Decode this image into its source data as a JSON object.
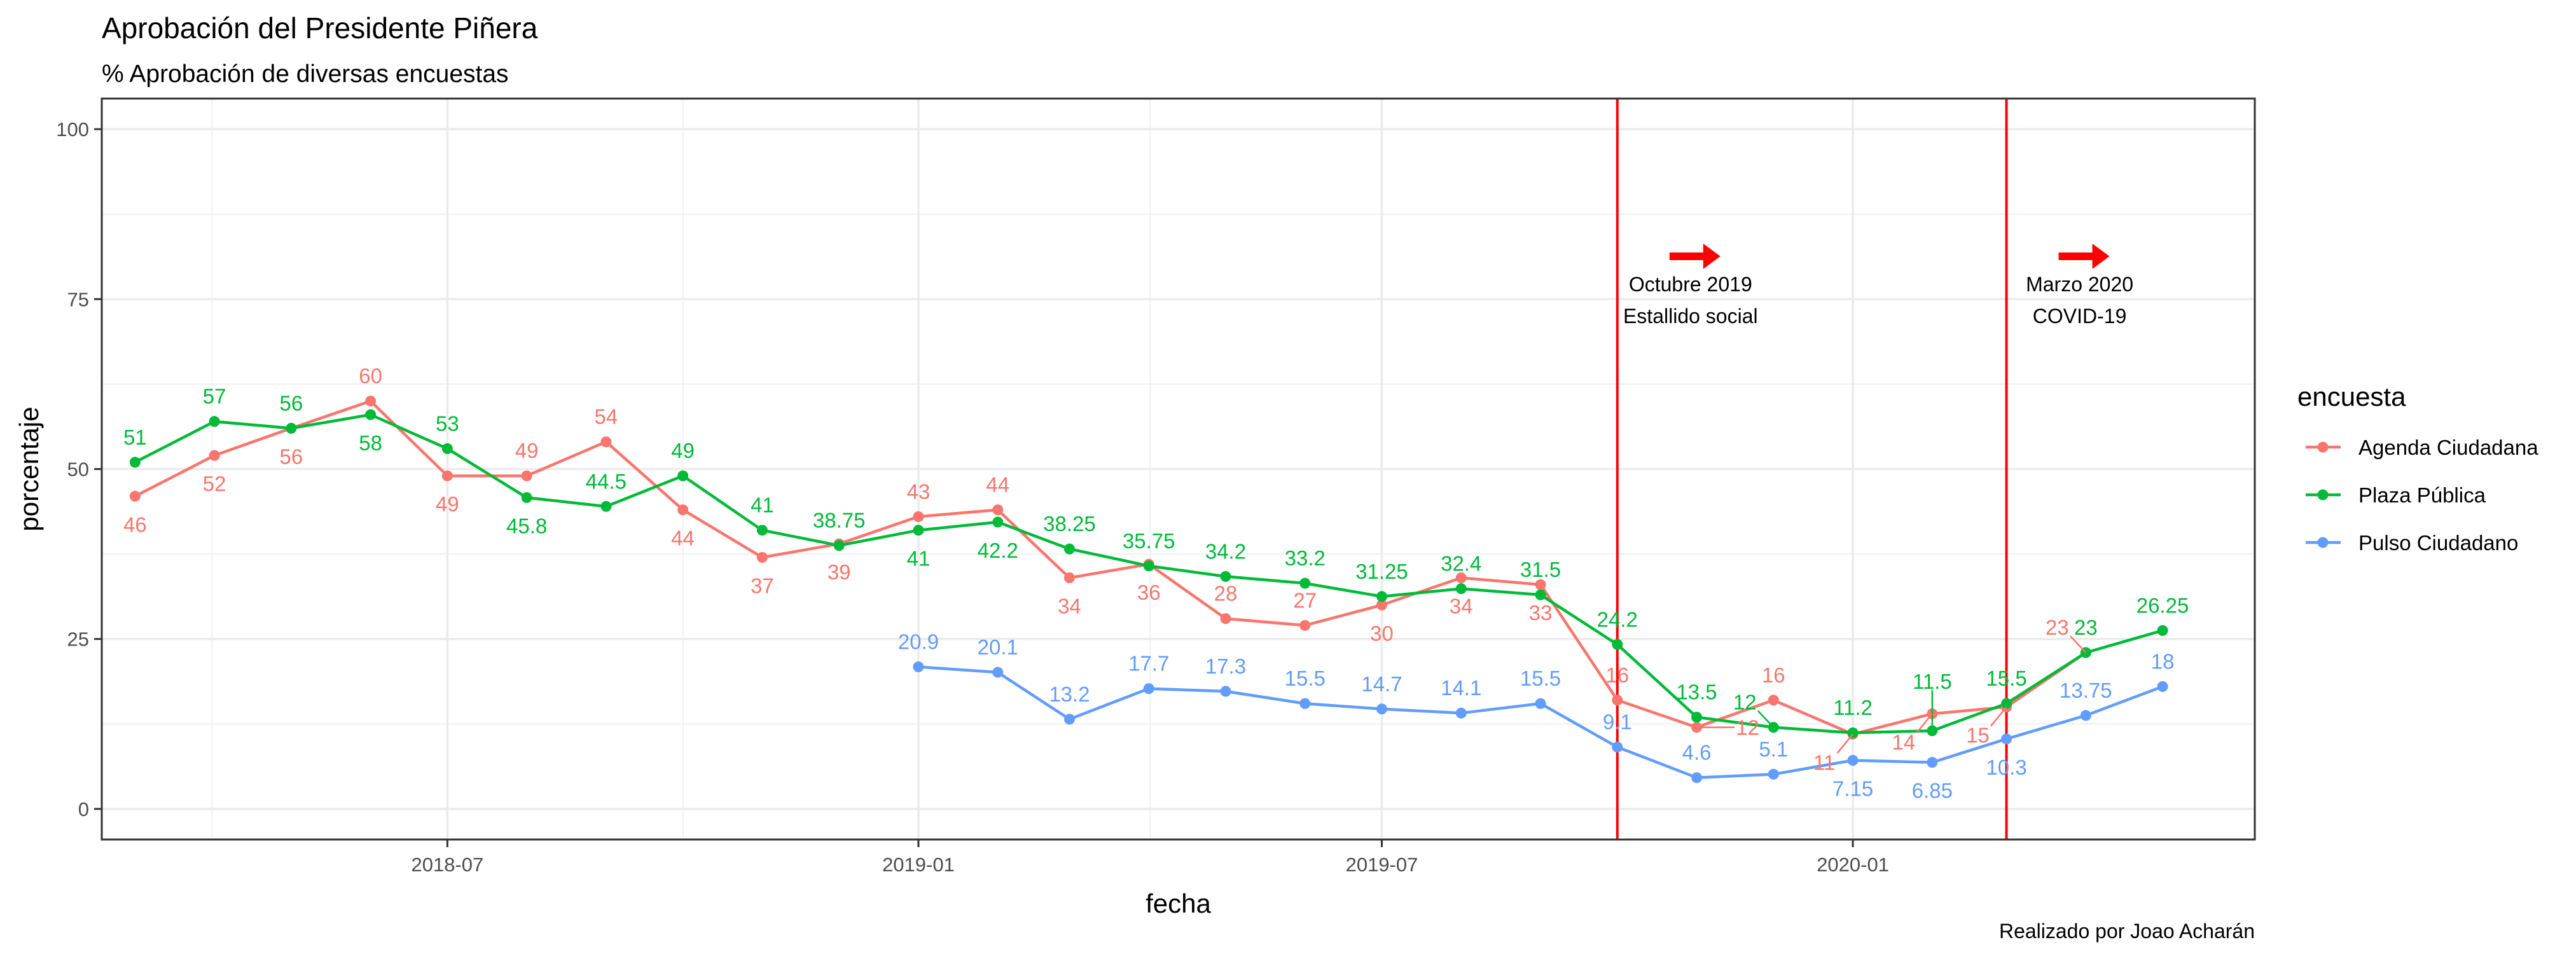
{
  "chart_data": {
    "type": "line",
    "title": "Aprobación del Presidente Piñera",
    "subtitle": "% Aprobación de diversas encuestas",
    "xlabel": "fecha",
    "ylabel": "porcentaje",
    "caption": "Realizado por Joao Acharán",
    "ylim": [
      0,
      100
    ],
    "xlim": [
      "2018-02-16",
      "2020-06-06"
    ],
    "x_ticks": [
      {
        "date": "2018-07-01",
        "label": "2018-07"
      },
      {
        "date": "2019-01-01",
        "label": "2019-01"
      },
      {
        "date": "2019-07-01",
        "label": "2019-07"
      },
      {
        "date": "2020-01-01",
        "label": "2020-01"
      }
    ],
    "y_ticks": [
      0,
      25,
      50,
      75,
      100
    ],
    "grid": true,
    "legend": {
      "title": "encuesta",
      "position": "right"
    },
    "series": [
      {
        "name": "Agenda Ciudadana",
        "color": "#F8766D",
        "points": [
          {
            "x": "2018-03-01",
            "y": 46,
            "label": "46"
          },
          {
            "x": "2018-04-01",
            "y": 52,
            "label": "52"
          },
          {
            "x": "2018-05-01",
            "y": 56,
            "label": "56"
          },
          {
            "x": "2018-06-01",
            "y": 60,
            "label": "60"
          },
          {
            "x": "2018-07-01",
            "y": 49,
            "label": "49"
          },
          {
            "x": "2018-08-01",
            "y": 49,
            "label": "49"
          },
          {
            "x": "2018-09-01",
            "y": 54,
            "label": "54"
          },
          {
            "x": "2018-10-01",
            "y": 44,
            "label": "44"
          },
          {
            "x": "2018-11-01",
            "y": 37,
            "label": "37"
          },
          {
            "x": "2018-12-01",
            "y": 39,
            "label": "39"
          },
          {
            "x": "2019-01-01",
            "y": 43,
            "label": "43"
          },
          {
            "x": "2019-02-01",
            "y": 44,
            "label": "44"
          },
          {
            "x": "2019-03-01",
            "y": 34,
            "label": "34"
          },
          {
            "x": "2019-04-01",
            "y": 36,
            "label": "36"
          },
          {
            "x": "2019-05-01",
            "y": 28,
            "label": "28"
          },
          {
            "x": "2019-06-01",
            "y": 27,
            "label": "27"
          },
          {
            "x": "2019-07-01",
            "y": 30,
            "label": "30"
          },
          {
            "x": "2019-08-01",
            "y": 34,
            "label": "34"
          },
          {
            "x": "2019-09-01",
            "y": 33,
            "label": "33"
          },
          {
            "x": "2019-10-01",
            "y": 16,
            "label": "16"
          },
          {
            "x": "2019-11-01",
            "y": 12,
            "label": "12"
          },
          {
            "x": "2019-12-01",
            "y": 16,
            "label": "16"
          },
          {
            "x": "2020-01-01",
            "y": 11,
            "label": "11"
          },
          {
            "x": "2020-02-01",
            "y": 14,
            "label": "14"
          },
          {
            "x": "2020-03-01",
            "y": 15,
            "label": "15"
          },
          {
            "x": "2020-04-01",
            "y": 23,
            "label": "23"
          }
        ]
      },
      {
        "name": "Plaza Pública",
        "color": "#00BA38",
        "points": [
          {
            "x": "2018-03-01",
            "y": 51,
            "label": "51"
          },
          {
            "x": "2018-04-01",
            "y": 57,
            "label": "57"
          },
          {
            "x": "2018-05-01",
            "y": 56,
            "label": "56"
          },
          {
            "x": "2018-06-01",
            "y": 58,
            "label": "58"
          },
          {
            "x": "2018-07-01",
            "y": 53,
            "label": "53"
          },
          {
            "x": "2018-08-01",
            "y": 45.8,
            "label": "45.8"
          },
          {
            "x": "2018-09-01",
            "y": 44.5,
            "label": "44.5"
          },
          {
            "x": "2018-10-01",
            "y": 49,
            "label": "49"
          },
          {
            "x": "2018-11-01",
            "y": 41,
            "label": "41"
          },
          {
            "x": "2018-12-01",
            "y": 38.75,
            "label": "38.75"
          },
          {
            "x": "2019-01-01",
            "y": 41,
            "label": "41"
          },
          {
            "x": "2019-02-01",
            "y": 42.2,
            "label": "42.2"
          },
          {
            "x": "2019-03-01",
            "y": 38.25,
            "label": "38.25"
          },
          {
            "x": "2019-04-01",
            "y": 35.75,
            "label": "35.75"
          },
          {
            "x": "2019-05-01",
            "y": 34.2,
            "label": "34.2"
          },
          {
            "x": "2019-06-01",
            "y": 33.2,
            "label": "33.2"
          },
          {
            "x": "2019-07-01",
            "y": 31.25,
            "label": "31.25"
          },
          {
            "x": "2019-08-01",
            "y": 32.4,
            "label": "32.4"
          },
          {
            "x": "2019-09-01",
            "y": 31.5,
            "label": "31.5"
          },
          {
            "x": "2019-10-01",
            "y": 24.2,
            "label": "24.2"
          },
          {
            "x": "2019-11-01",
            "y": 13.5,
            "label": "13.5"
          },
          {
            "x": "2019-12-01",
            "y": 12,
            "label": "12"
          },
          {
            "x": "2020-01-01",
            "y": 11.2,
            "label": "11.2"
          },
          {
            "x": "2020-02-01",
            "y": 11.5,
            "label": "11.5"
          },
          {
            "x": "2020-03-01",
            "y": 15.5,
            "label": "15.5"
          },
          {
            "x": "2020-04-01",
            "y": 23,
            "label": "23"
          },
          {
            "x": "2020-05-01",
            "y": 26.25,
            "label": "26.25"
          }
        ]
      },
      {
        "name": "Pulso Ciudadano",
        "color": "#619CFF",
        "points": [
          {
            "x": "2019-01-01",
            "y": 20.9,
            "label": "20.9"
          },
          {
            "x": "2019-02-01",
            "y": 20.1,
            "label": "20.1"
          },
          {
            "x": "2019-03-01",
            "y": 13.2,
            "label": "13.2"
          },
          {
            "x": "2019-04-01",
            "y": 17.7,
            "label": "17.7"
          },
          {
            "x": "2019-05-01",
            "y": 17.3,
            "label": "17.3"
          },
          {
            "x": "2019-06-01",
            "y": 15.5,
            "label": "15.5"
          },
          {
            "x": "2019-07-01",
            "y": 14.7,
            "label": "14.7"
          },
          {
            "x": "2019-08-01",
            "y": 14.1,
            "label": "14.1"
          },
          {
            "x": "2019-09-01",
            "y": 15.5,
            "label": "15.5"
          },
          {
            "x": "2019-10-01",
            "y": 9.1,
            "label": "9.1"
          },
          {
            "x": "2019-11-01",
            "y": 4.6,
            "label": "4.6"
          },
          {
            "x": "2019-12-01",
            "y": 5.1,
            "label": "5.1"
          },
          {
            "x": "2020-01-01",
            "y": 7.15,
            "label": "7.15"
          },
          {
            "x": "2020-02-01",
            "y": 6.85,
            "label": "6.85"
          },
          {
            "x": "2020-03-01",
            "y": 10.3,
            "label": "10.3"
          },
          {
            "x": "2020-04-01",
            "y": 13.75,
            "label": "13.75"
          },
          {
            "x": "2020-05-01",
            "y": 18,
            "label": "18"
          }
        ]
      }
    ],
    "annotations": [
      {
        "type": "vline",
        "x": "2019-10-01",
        "color": "#FF0000",
        "lines": [
          "Octubre 2019",
          "Estallido social"
        ],
        "arrow": "right-arrow-icon"
      },
      {
        "type": "vline",
        "x": "2020-03-01",
        "color": "#FF0000",
        "lines": [
          "Marzo 2020",
          "COVID-19"
        ],
        "arrow": "right-arrow-icon"
      }
    ]
  }
}
